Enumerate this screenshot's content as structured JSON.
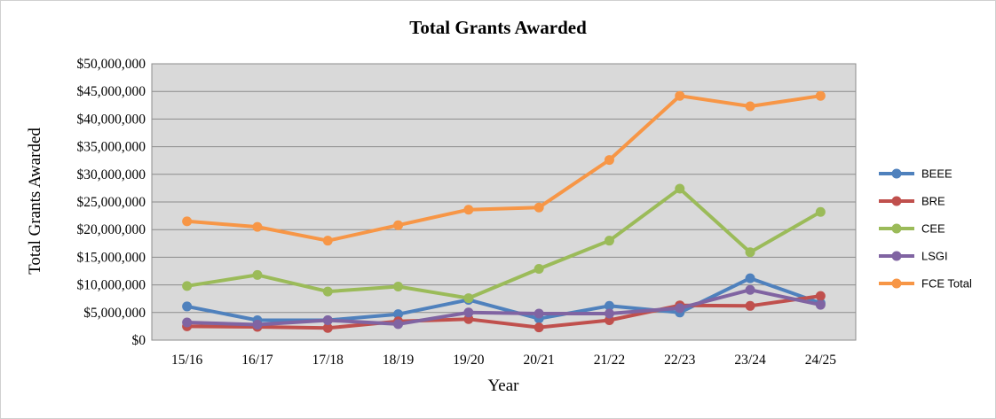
{
  "chart_data": {
    "type": "line",
    "title": "Total Grants Awarded",
    "xlabel": "Year",
    "ylabel": "Total Grants Awarded",
    "categories": [
      "15/16",
      "16/17",
      "17/18",
      "18/19",
      "19/20",
      "20/21",
      "21/22",
      "22/23",
      "23/24",
      "24/25"
    ],
    "ylim": [
      0,
      50000000
    ],
    "y_ticks": [
      {
        "value": 0,
        "label": "$0"
      },
      {
        "value": 5000000,
        "label": "$5,000,000"
      },
      {
        "value": 10000000,
        "label": "$10,000,000"
      },
      {
        "value": 15000000,
        "label": "$15,000,000"
      },
      {
        "value": 20000000,
        "label": "$20,000,000"
      },
      {
        "value": 25000000,
        "label": "$25,000,000"
      },
      {
        "value": 30000000,
        "label": "$30,000,000"
      },
      {
        "value": 35000000,
        "label": "$35,000,000"
      },
      {
        "value": 40000000,
        "label": "$40,000,000"
      },
      {
        "value": 45000000,
        "label": "$45,000,000"
      },
      {
        "value": 50000000,
        "label": "$50,000,000"
      }
    ],
    "grid": true,
    "legend_position": "right",
    "series": [
      {
        "name": "BEEE",
        "color": "#4f81bd",
        "values": [
          6100000,
          3600000,
          3600000,
          4700000,
          7300000,
          3900000,
          6200000,
          5000000,
          11200000,
          6700000
        ]
      },
      {
        "name": "BRE",
        "color": "#c0504d",
        "values": [
          2500000,
          2400000,
          2200000,
          3400000,
          3800000,
          2300000,
          3600000,
          6300000,
          6200000,
          8000000
        ]
      },
      {
        "name": "CEE",
        "color": "#9bbb59",
        "values": [
          9800000,
          11800000,
          8800000,
          9700000,
          7600000,
          12900000,
          18000000,
          27400000,
          15900000,
          23200000
        ]
      },
      {
        "name": "LSGI",
        "color": "#8064a2",
        "values": [
          3200000,
          2800000,
          3600000,
          2900000,
          5000000,
          4800000,
          4800000,
          5800000,
          9100000,
          6400000
        ]
      },
      {
        "name": "FCE Total",
        "color": "#f79646",
        "values": [
          21500000,
          20500000,
          18000000,
          20800000,
          23600000,
          24000000,
          32600000,
          44200000,
          42300000,
          44200000
        ]
      }
    ]
  }
}
